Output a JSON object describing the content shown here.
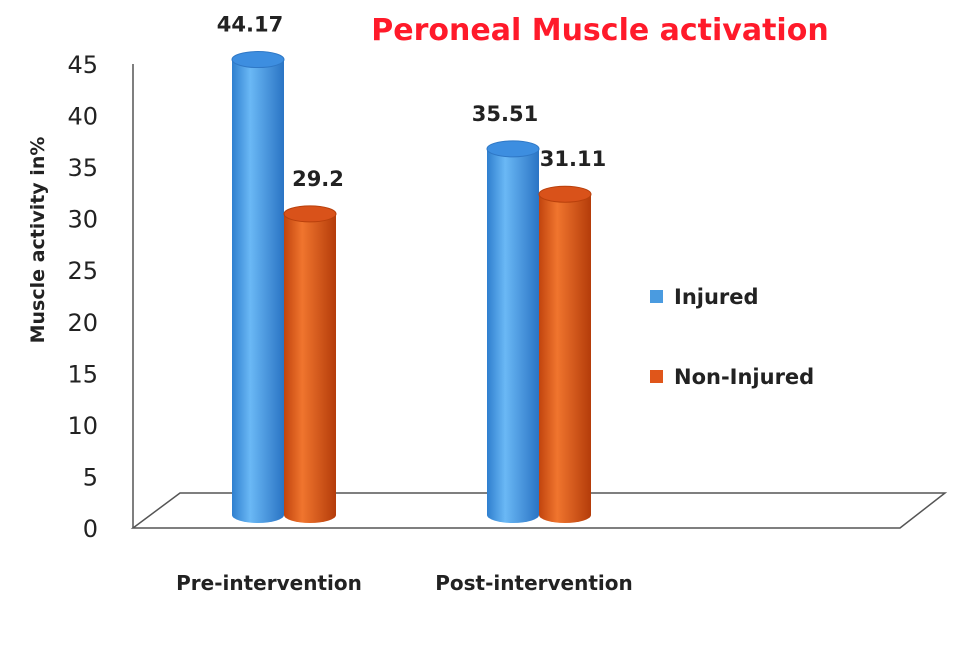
{
  "chart_data": {
    "type": "bar",
    "title": "Peroneal Muscle activation",
    "xlabel": "",
    "ylabel": "Muscle activity in%",
    "ylim": [
      0,
      45
    ],
    "yticks": [
      0,
      5,
      10,
      15,
      20,
      25,
      30,
      35,
      40,
      45
    ],
    "categories": [
      "Pre-intervention",
      "Post-intervention"
    ],
    "series": [
      {
        "name": "Injured",
        "values": [
          44.17,
          35.51
        ],
        "labels": [
          "44.17",
          "35.51"
        ],
        "color": "#4a9be0"
      },
      {
        "name": "Non-Injured",
        "values": [
          29.2,
          31.11
        ],
        "labels": [
          "29.2",
          "31.11"
        ],
        "color": "#e0561a"
      }
    ],
    "legend_position": "right",
    "grid": false,
    "title_color": "#ff1a2a"
  }
}
